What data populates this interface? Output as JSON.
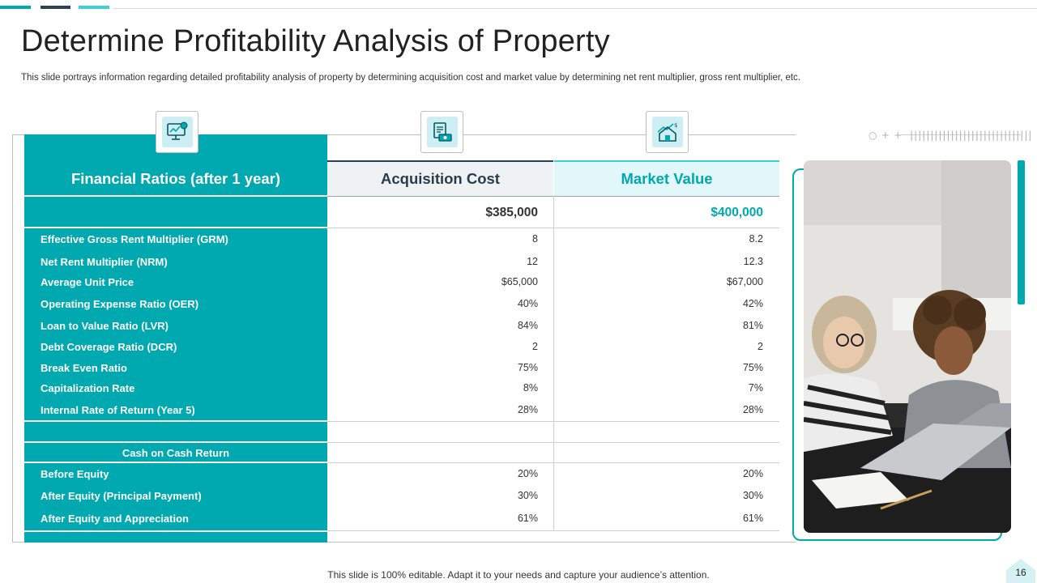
{
  "slide": {
    "title": "Determine Profitability Analysis of Property",
    "subtitle": "This slide portrays information regarding detailed profitability analysis of property by determining acquisition cost and market value by determining net rent multiplier, gross rent multiplier, etc.",
    "footer": "This slide is 100% editable. Adapt it to your needs and capture your audience’s attention.",
    "page_number": "16"
  },
  "colors": {
    "accent": "#00a8b0",
    "dark": "#2e4057",
    "light_accent": "#3ad1dc"
  },
  "icons": [
    "dashboard-chart-icon",
    "invoice-money-icon",
    "house-value-icon"
  ],
  "table": {
    "headers": {
      "label": "Financial Ratios (after 1 year)",
      "acquisition": "Acquisition Cost",
      "market": "Market Value"
    },
    "totals": {
      "acquisition": "$385,000",
      "market": "$400,000"
    },
    "rows": [
      {
        "label": "Effective Gross  Rent Multiplier (GRM)",
        "acquisition": "8",
        "market": "8.2"
      },
      {
        "label": "Net Rent Multiplier (NRM)",
        "acquisition": "12",
        "market": "12.3"
      },
      {
        "label": "Average Unit Price",
        "acquisition": "$65,000",
        "market": "$67,000"
      },
      {
        "label": "Operating Expense Ratio (OER)",
        "acquisition": "40%",
        "market": "42%"
      },
      {
        "label": "Loan to Value Ratio (LVR)",
        "acquisition": "84%",
        "market": "81%"
      },
      {
        "label": "Debt Coverage Ratio (DCR)",
        "acquisition": "2",
        "market": "2"
      },
      {
        "label": "Break Even Ratio",
        "acquisition": "75%",
        "market": "75%"
      },
      {
        "label": "Capitalization Rate",
        "acquisition": "8%",
        "market": "7%"
      },
      {
        "label": "Internal Rate of Return (Year 5)",
        "acquisition": "28%",
        "market": "28%"
      }
    ],
    "section_title": "Cash on Cash Return",
    "section_rows": [
      {
        "label": "Before Equity",
        "acquisition": "20%",
        "market": "20%"
      },
      {
        "label": "After Equity (Principal Payment)",
        "acquisition": "30%",
        "market": "30%"
      },
      {
        "label": "After Equity and Appreciation",
        "acquisition": "61%",
        "market": "61%"
      }
    ]
  }
}
